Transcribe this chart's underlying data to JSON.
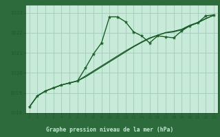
{
  "title": "Graphe pression niveau de la mer (hPa)",
  "bg_plot": "#c8ead8",
  "bg_label": "#2d6b3c",
  "label_text_color": "#c8ead8",
  "line_color": "#1a5c28",
  "grid_color": "#a0ccb8",
  "xlim": [
    -0.5,
    23.5
  ],
  "ylim": [
    1018,
    1023.4
  ],
  "xticks": [
    0,
    1,
    2,
    3,
    4,
    5,
    6,
    7,
    8,
    9,
    10,
    11,
    12,
    13,
    14,
    15,
    16,
    17,
    18,
    19,
    20,
    21,
    22,
    23
  ],
  "yticks": [
    1018,
    1019,
    1020,
    1021,
    1022,
    1023
  ],
  "series1_x": [
    0,
    1,
    2,
    3,
    4,
    5,
    6,
    7,
    8,
    9,
    10,
    11,
    12,
    13,
    14,
    15,
    16,
    17,
    18,
    19,
    20,
    21,
    22,
    23
  ],
  "series1_y": [
    1018.3,
    1018.85,
    1019.1,
    1019.25,
    1019.4,
    1019.5,
    1019.6,
    1020.25,
    1020.95,
    1021.5,
    1022.8,
    1022.8,
    1022.55,
    1022.05,
    1021.85,
    1021.5,
    1021.85,
    1021.8,
    1021.75,
    1022.1,
    1022.35,
    1022.5,
    1022.85,
    1022.9
  ],
  "series2_x": [
    0,
    1,
    2,
    3,
    4,
    5,
    6,
    7,
    8,
    9,
    10,
    11,
    12,
    13,
    14,
    15,
    16,
    17,
    18,
    19,
    20,
    21,
    22,
    23
  ],
  "series2_y": [
    1018.3,
    1018.85,
    1019.1,
    1019.25,
    1019.4,
    1019.5,
    1019.6,
    1019.8,
    1020.05,
    1020.3,
    1020.55,
    1020.8,
    1021.05,
    1021.3,
    1021.52,
    1021.72,
    1021.88,
    1022.02,
    1022.08,
    1022.18,
    1022.38,
    1022.52,
    1022.72,
    1022.88
  ],
  "series3_x": [
    0,
    1,
    2,
    3,
    4,
    5,
    6,
    7,
    8,
    9,
    10,
    11,
    12,
    13,
    14,
    15,
    16,
    17,
    18,
    19,
    20,
    21,
    22,
    23
  ],
  "series3_y": [
    1018.3,
    1018.85,
    1019.1,
    1019.25,
    1019.4,
    1019.5,
    1019.6,
    1019.85,
    1020.1,
    1020.35,
    1020.6,
    1020.85,
    1021.1,
    1021.33,
    1021.55,
    1021.75,
    1021.88,
    1022.0,
    1022.05,
    1022.15,
    1022.35,
    1022.5,
    1022.7,
    1022.88
  ]
}
